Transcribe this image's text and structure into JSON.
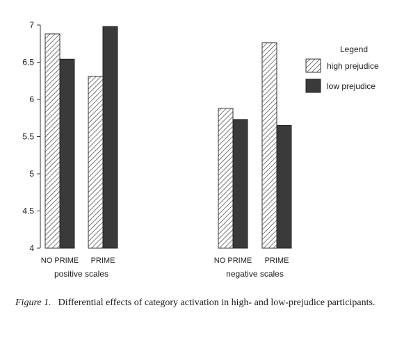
{
  "chart_data": {
    "type": "bar",
    "groups": [
      {
        "label": "positive scales",
        "categories": [
          "NO PRIME",
          "PRIME"
        ]
      },
      {
        "label": "negative scales",
        "categories": [
          "NO PRIME",
          "PRIME"
        ]
      }
    ],
    "series": [
      {
        "name": "high prejudice",
        "values": [
          6.88,
          6.31,
          5.88,
          6.76
        ],
        "color": "#ffffff",
        "pattern": "diagonal-hatch"
      },
      {
        "name": "low prejudice",
        "values": [
          6.54,
          6.98,
          5.73,
          5.65
        ],
        "color": "#3a3a3a"
      }
    ],
    "ylim": [
      4,
      7
    ],
    "yticks": [
      "7",
      "6.5",
      "6",
      "5.5",
      "5",
      "4.5",
      "4"
    ],
    "grid": false,
    "legend": {
      "title": "Legend",
      "placement": "right"
    }
  },
  "caption": {
    "label": "Figure 1.",
    "text": "Differential effects of category activation in high- and low-prejudice participants."
  }
}
